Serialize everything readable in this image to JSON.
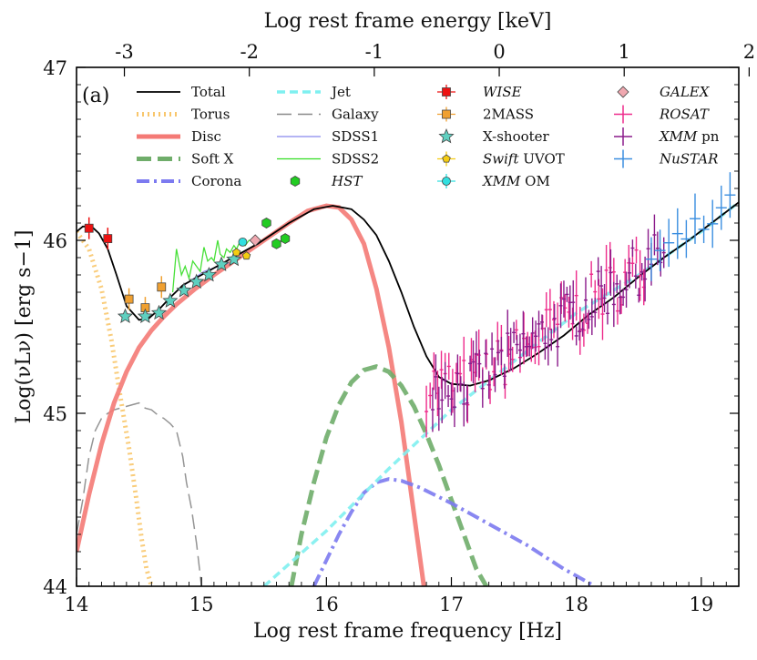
{
  "chart_data": {
    "type": "line",
    "panel_label": "(a)",
    "xlabel": "Log rest frame frequency [Hz]",
    "ylabel": "Log(νLν) [erg s−1]",
    "top_xlabel": "Log rest frame energy [keV]",
    "xlim": [
      14.0,
      19.3
    ],
    "ylim": [
      44.0,
      47.0
    ],
    "x_ticks": [
      14,
      15,
      16,
      17,
      18,
      19
    ],
    "x_tick_labels": [
      "14",
      "15",
      "16",
      "17",
      "18",
      "19"
    ],
    "y_ticks": [
      44,
      45,
      46,
      47
    ],
    "y_tick_labels": [
      "44",
      "45",
      "46",
      "47"
    ],
    "top_ticks": [
      -3,
      -2,
      -1,
      0,
      1,
      2
    ],
    "top_tick_labels": [
      "-3",
      "-2",
      "-1",
      "0",
      "1",
      "2"
    ],
    "keV_to_log_hz_offset": 17.383,
    "legend": [
      {
        "label": "Total",
        "kind": "line",
        "color": "#000000",
        "dash": "solid"
      },
      {
        "label": "Torus",
        "kind": "line",
        "color": "#f8c66c",
        "dash": "dotted"
      },
      {
        "label": "Disc",
        "kind": "line",
        "color": "#f47a76",
        "dash": "solid"
      },
      {
        "label": "Soft X",
        "kind": "line",
        "color": "#6fad6a",
        "dash": "longdash"
      },
      {
        "label": "Corona",
        "kind": "line",
        "color": "#7c7af0",
        "dash": "dashdot"
      },
      {
        "label": "Jet",
        "kind": "line",
        "color": "#7ff0f0",
        "dash": "dashed"
      },
      {
        "label": "Galaxy",
        "kind": "line",
        "color": "#888888",
        "dash": "longdash"
      },
      {
        "label": "SDSS1",
        "kind": "line",
        "color": "#8888ee",
        "dash": "solid"
      },
      {
        "label": "SDSS2",
        "kind": "line",
        "color": "#33dd22",
        "dash": "solid"
      },
      {
        "label": "HST",
        "kind": "marker",
        "marker": "hexagon",
        "color": "#22cc22",
        "italic": true
      },
      {
        "label": "WISE",
        "kind": "marker",
        "marker": "square",
        "color": "#ee1111",
        "italic": true
      },
      {
        "label": "2MASS",
        "kind": "marker",
        "marker": "square",
        "color": "#f0a030"
      },
      {
        "label": "X-shooter",
        "kind": "marker",
        "marker": "star",
        "color": "#5fd0c0"
      },
      {
        "label_italic": "Swift",
        "label_rest": " UVOT",
        "label": "Swift UVOT",
        "kind": "marker",
        "marker": "pentagon",
        "color": "#f5cc10"
      },
      {
        "label_italic": "XMM",
        "label_rest": " OM",
        "label": "XMM OM",
        "kind": "marker",
        "marker": "circle",
        "color": "#30e0e0"
      },
      {
        "label": "GALEX",
        "kind": "marker",
        "marker": "diamond",
        "color": "#f0a8b0",
        "italic": true
      },
      {
        "label": "ROSAT",
        "kind": "cross",
        "color": "#ee2b8b",
        "italic": true
      },
      {
        "label_italic": "XMM",
        "label_rest": " pn",
        "label": "XMM pn",
        "kind": "cross",
        "color": "#8a1a8a"
      },
      {
        "label": "NuSTAR",
        "kind": "cross",
        "color": "#3a8ee0",
        "italic": true
      }
    ],
    "series": [
      {
        "name": "Total",
        "color": "#000000",
        "dash": "solid",
        "x": [
          14.0,
          14.05,
          14.12,
          14.18,
          14.25,
          14.32,
          14.4,
          14.5,
          14.58,
          14.66,
          14.75,
          14.85,
          15.0,
          15.2,
          15.45,
          15.7,
          15.9,
          16.05,
          16.2,
          16.3,
          16.4,
          16.5,
          16.6,
          16.7,
          16.8,
          16.9,
          17.0,
          17.15,
          17.3,
          17.5,
          17.7,
          17.9,
          18.1,
          18.3,
          18.5,
          18.7,
          18.9,
          19.1,
          19.3
        ],
        "y": [
          46.05,
          46.08,
          46.08,
          46.04,
          45.95,
          45.8,
          45.62,
          45.54,
          45.55,
          45.6,
          45.67,
          45.74,
          45.8,
          45.88,
          45.98,
          46.1,
          46.18,
          46.2,
          46.18,
          46.12,
          46.03,
          45.88,
          45.7,
          45.5,
          45.33,
          45.21,
          45.17,
          45.16,
          45.19,
          45.26,
          45.35,
          45.45,
          45.57,
          45.67,
          45.79,
          45.9,
          46.0,
          46.11,
          46.22
        ]
      },
      {
        "name": "Torus",
        "color": "#f8c66c",
        "dash": "dotted",
        "x": [
          14.0,
          14.1,
          14.2,
          14.28,
          14.35,
          14.42,
          14.48,
          14.52,
          14.56,
          14.6
        ],
        "y": [
          46.05,
          45.95,
          45.72,
          45.42,
          45.1,
          44.8,
          44.5,
          44.28,
          44.1,
          44.0
        ]
      },
      {
        "name": "Disc",
        "color": "#f47a76",
        "dash": "solid",
        "x": [
          14.0,
          14.1,
          14.2,
          14.3,
          14.4,
          14.5,
          14.6,
          14.7,
          14.8,
          14.95,
          15.1,
          15.3,
          15.5,
          15.7,
          15.85,
          16.0,
          16.1,
          16.2,
          16.3,
          16.4,
          16.5,
          16.6,
          16.7,
          16.78
        ],
        "y": [
          44.2,
          44.53,
          44.82,
          45.06,
          45.24,
          45.38,
          45.48,
          45.56,
          45.63,
          45.72,
          45.8,
          45.9,
          46.0,
          46.1,
          46.17,
          46.2,
          46.19,
          46.12,
          45.98,
          45.72,
          45.38,
          44.95,
          44.42,
          44.0
        ]
      },
      {
        "name": "Soft X",
        "color": "#6fad6a",
        "dash": "longdash",
        "x": [
          15.72,
          15.8,
          15.9,
          16.0,
          16.1,
          16.2,
          16.3,
          16.4,
          16.5,
          16.6,
          16.7,
          16.8,
          16.9,
          17.0,
          17.1,
          17.2,
          17.28
        ],
        "y": [
          44.0,
          44.3,
          44.6,
          44.86,
          45.05,
          45.18,
          45.25,
          45.27,
          45.24,
          45.16,
          45.04,
          44.88,
          44.7,
          44.5,
          44.3,
          44.1,
          44.0
        ]
      },
      {
        "name": "Corona",
        "color": "#7c7af0",
        "dash": "dashdot",
        "x": [
          15.9,
          16.0,
          16.1,
          16.2,
          16.3,
          16.4,
          16.5,
          16.6,
          16.75,
          17.0,
          17.3,
          17.6,
          17.9,
          18.1,
          18.15
        ],
        "y": [
          44.0,
          44.15,
          44.3,
          44.43,
          44.54,
          44.6,
          44.62,
          44.61,
          44.57,
          44.48,
          44.36,
          44.24,
          44.1,
          44.02,
          44.0
        ]
      },
      {
        "name": "Jet",
        "color": "#7ff0f0",
        "dash": "dashed",
        "x": [
          15.5,
          16.0,
          16.5,
          17.0,
          17.5,
          18.0,
          18.5,
          19.0,
          19.3
        ],
        "y": [
          44.0,
          44.32,
          44.68,
          45.02,
          45.3,
          45.58,
          45.8,
          46.05,
          46.22
        ]
      },
      {
        "name": "Galaxy",
        "color": "#888888",
        "dash": "longdash",
        "x": [
          14.0,
          14.05,
          14.1,
          14.15,
          14.2,
          14.25,
          14.3,
          14.35,
          14.4,
          14.45,
          14.5,
          14.55,
          14.6,
          14.65,
          14.7,
          14.75,
          14.8,
          14.85,
          14.88,
          14.92,
          14.96,
          15.0
        ],
        "y": [
          44.3,
          44.5,
          44.75,
          44.9,
          44.97,
          45.0,
          45.02,
          45.03,
          45.04,
          45.05,
          45.06,
          45.03,
          45.02,
          44.99,
          44.97,
          44.94,
          44.9,
          44.75,
          44.6,
          44.45,
          44.25,
          44.0
        ]
      },
      {
        "name": "SDSS2",
        "color": "#33dd22",
        "dash": "solid",
        "x": [
          14.77,
          14.8,
          14.84,
          14.87,
          14.9,
          14.93,
          14.96,
          14.99,
          15.02,
          15.05,
          15.08,
          15.1,
          15.13,
          15.15,
          15.18,
          15.2,
          15.23,
          15.26,
          15.28,
          15.3,
          15.33,
          15.35,
          15.38,
          15.4
        ],
        "y": [
          45.7,
          45.95,
          45.8,
          45.85,
          45.78,
          45.88,
          45.85,
          45.82,
          45.96,
          45.88,
          45.9,
          45.88,
          46.0,
          45.92,
          45.9,
          45.95,
          45.93,
          45.97,
          45.95,
          45.98,
          45.98,
          45.97,
          46.0,
          46.0
        ]
      },
      {
        "name": "SDSS1",
        "color": "#8888ee",
        "dash": "solid",
        "x": [
          14.82,
          14.86,
          14.9,
          14.94,
          14.98,
          15.02,
          15.06,
          15.1,
          15.14,
          15.18,
          15.22
        ],
        "y": [
          45.72,
          45.74,
          45.76,
          45.78,
          45.8,
          45.82,
          45.83,
          45.84,
          45.85,
          45.86,
          45.87
        ]
      }
    ],
    "points": {
      "WISE": {
        "x": [
          14.1,
          14.25
        ],
        "y": [
          46.07,
          46.01
        ]
      },
      "2MASS": {
        "x": [
          14.42,
          14.55,
          14.68
        ],
        "y": [
          45.66,
          45.61,
          45.73
        ]
      },
      "X-shooter": {
        "x": [
          14.39,
          14.55,
          14.66,
          14.75,
          14.86,
          14.96,
          15.06,
          15.16,
          15.26
        ],
        "y": [
          45.56,
          45.56,
          45.58,
          45.65,
          45.71,
          45.76,
          45.8,
          45.86,
          45.89
        ]
      },
      "HST": {
        "x": [
          15.52,
          15.6,
          15.67
        ],
        "y": [
          46.1,
          45.98,
          46.01
        ]
      },
      "Swift UVOT": {
        "x": [
          15.28,
          15.36
        ],
        "y": [
          45.93,
          45.91
        ]
      },
      "XMM OM": {
        "x": [
          15.33
        ],
        "y": [
          45.99
        ]
      },
      "GALEX": {
        "x": [
          15.43
        ],
        "y": [
          46.0
        ]
      }
    }
  }
}
